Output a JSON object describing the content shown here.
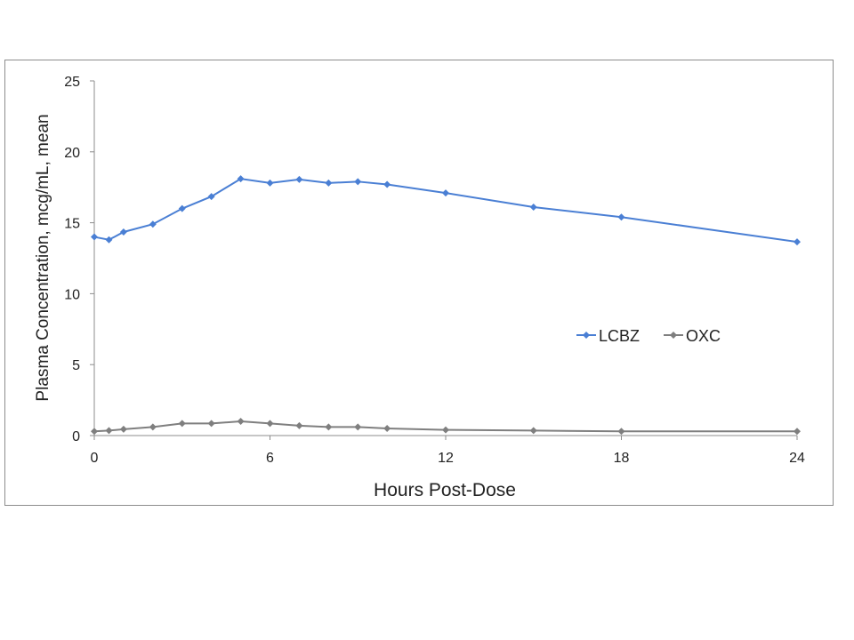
{
  "chart_data": {
    "type": "line",
    "title": "",
    "xlabel": "Hours Post-Dose",
    "ylabel": "Plasma Concentration, mcg/mL, mean",
    "xlim": [
      0,
      24
    ],
    "ylim": [
      0,
      25
    ],
    "xticks": [
      "0",
      "6",
      "12",
      "18",
      "24"
    ],
    "yticks": [
      "0",
      "5",
      "10",
      "15",
      "20",
      "25"
    ],
    "grid": false,
    "legend": "right-middle",
    "x": [
      0,
      0.5,
      1,
      2,
      3,
      4,
      5,
      6,
      7,
      8,
      9,
      10,
      12,
      15,
      18,
      24
    ],
    "series": [
      {
        "name": "LCBZ",
        "color": "#4a7fd4",
        "values": [
          14.0,
          13.8,
          14.35,
          14.9,
          16.0,
          16.85,
          18.1,
          17.8,
          18.05,
          17.8,
          17.9,
          17.7,
          17.1,
          16.1,
          15.4,
          13.65
        ]
      },
      {
        "name": "OXC",
        "color": "#7f7f7f",
        "values": [
          0.3,
          0.35,
          0.45,
          0.6,
          0.85,
          0.85,
          1.0,
          0.85,
          0.7,
          0.6,
          0.6,
          0.5,
          0.4,
          0.35,
          0.3,
          0.3
        ]
      }
    ]
  }
}
